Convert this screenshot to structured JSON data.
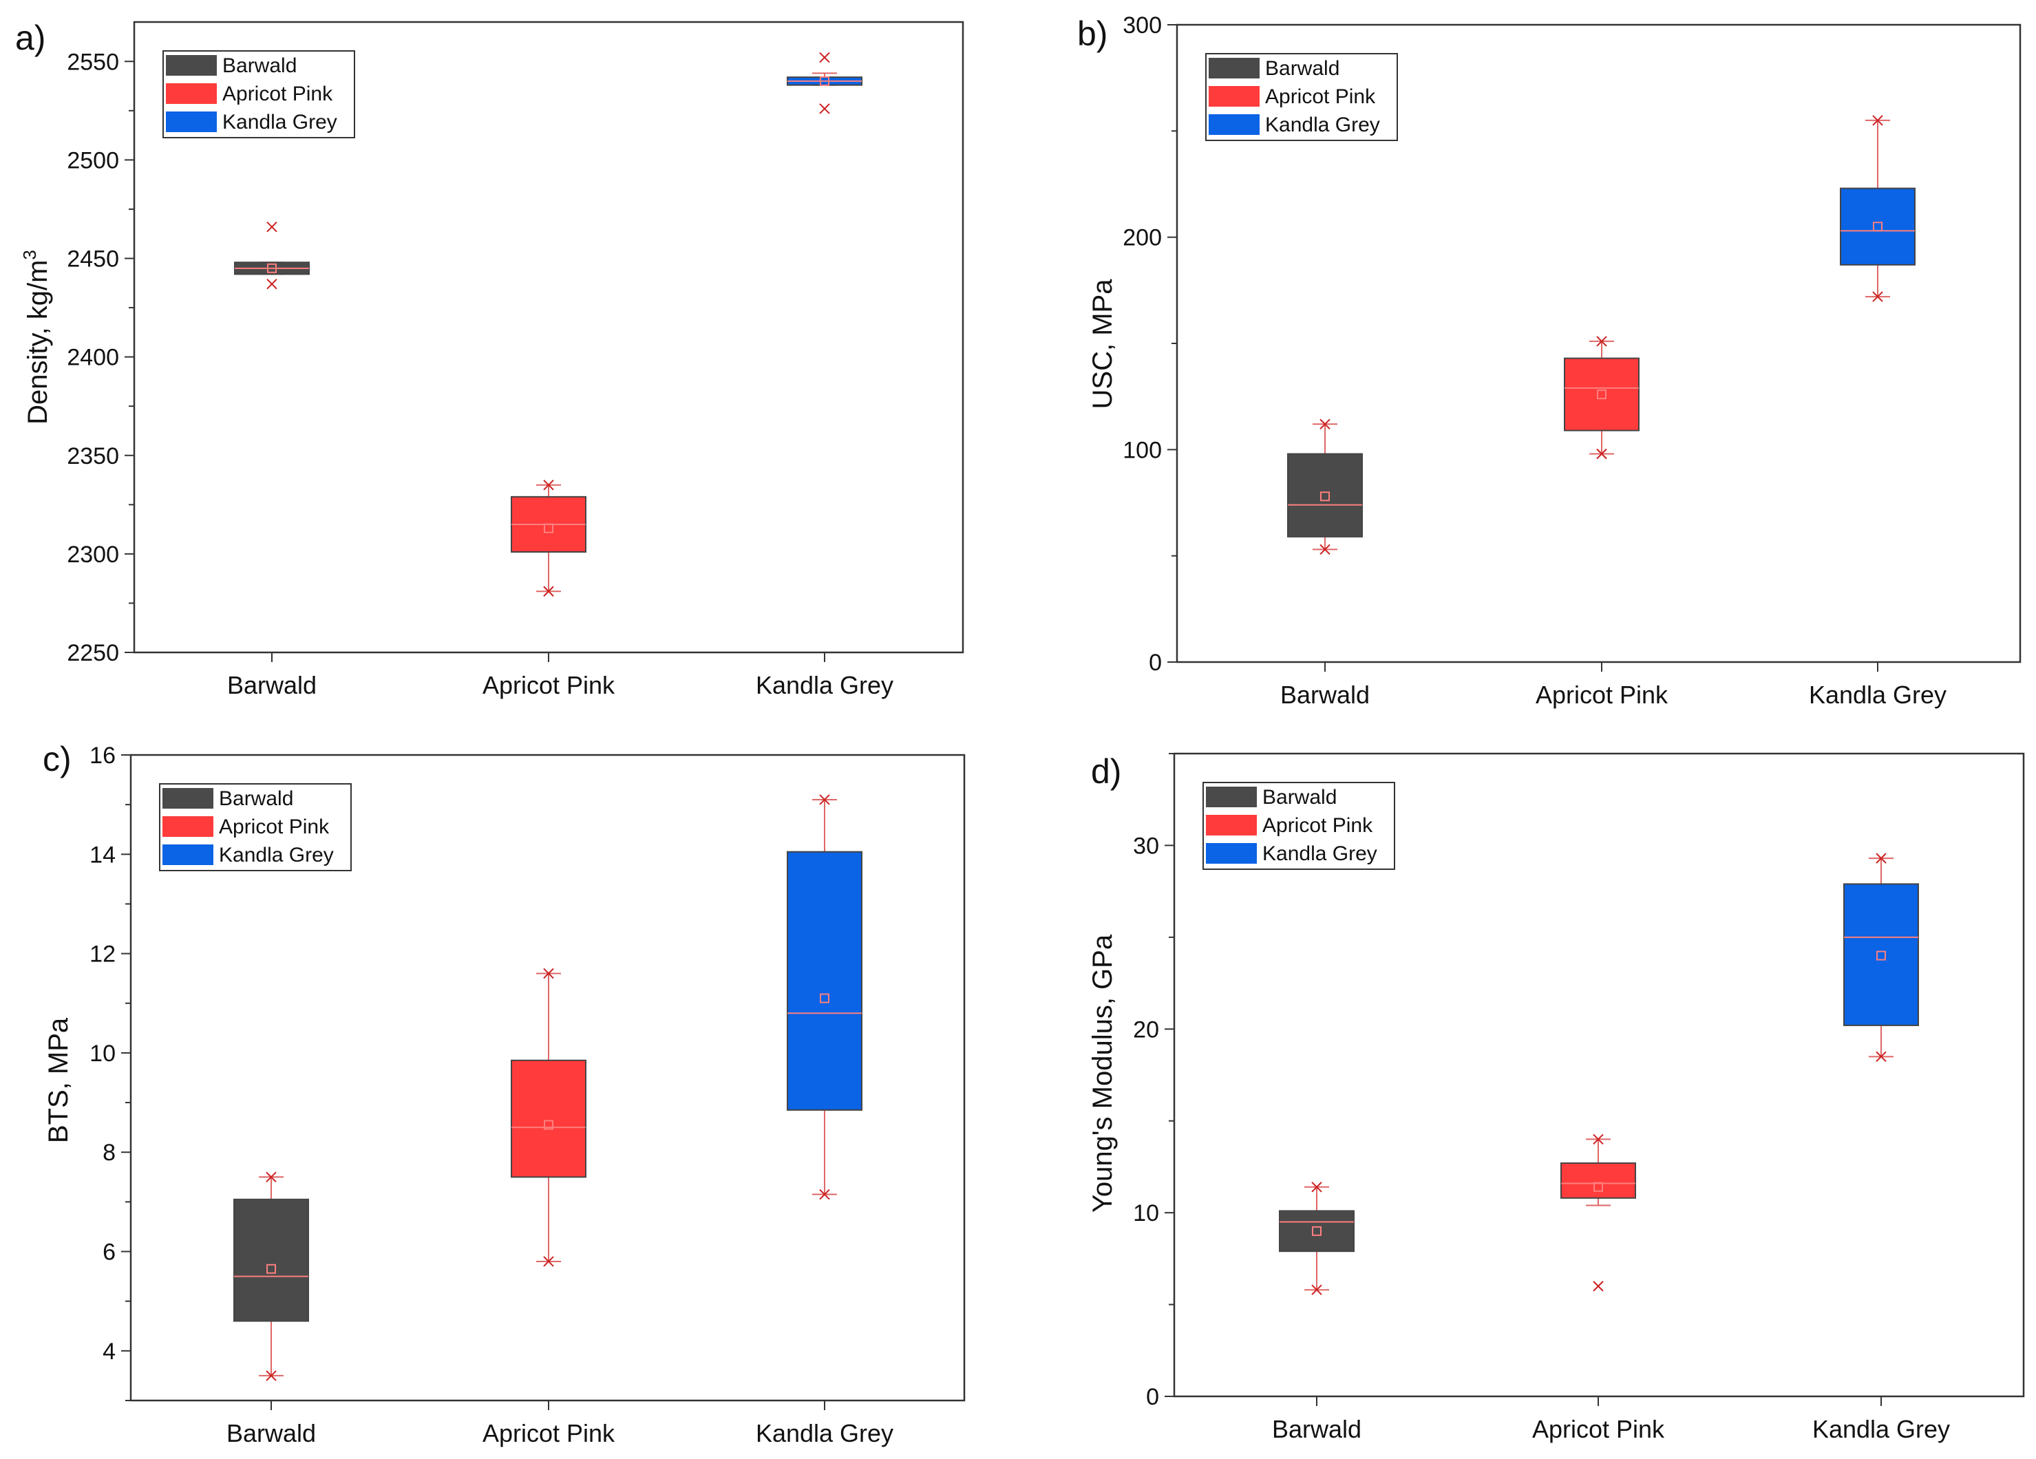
{
  "colors": {
    "Barwald": "#4a4a4a",
    "Apricot Pink": "#ff3b3b",
    "Kandla Grey": "#0b63e5",
    "median": "#ff7f7f",
    "whisker": "#e06666",
    "outlier": "#cc2222"
  },
  "chart_data": [
    {
      "panel_label": "a)",
      "type": "box",
      "categories": [
        "Barwald",
        "Apricot Pink",
        "Kandla Grey"
      ],
      "ylabel": "Density, kg/m",
      "ylabel_sup": "3",
      "ylim": [
        2250,
        2570
      ],
      "yticks": [
        2250,
        2300,
        2350,
        2400,
        2450,
        2500,
        2550
      ],
      "legend": [
        "Barwald",
        "Apricot Pink",
        "Kandla Grey"
      ],
      "boxes": [
        {
          "name": "Barwald",
          "q1": 2442,
          "median": 2445,
          "q3": 2448,
          "mean": 2445,
          "whisker_low": 2442,
          "whisker_high": 2448,
          "outliers": [
            2437,
            2466
          ]
        },
        {
          "name": "Apricot Pink",
          "q1": 2301,
          "median": 2315,
          "q3": 2329,
          "mean": 2313,
          "whisker_low": 2281,
          "whisker_high": 2335,
          "outliers": [
            2281,
            2335
          ]
        },
        {
          "name": "Kandla Grey",
          "q1": 2538,
          "median": 2540,
          "q3": 2542,
          "mean": 2540,
          "whisker_low": 2538,
          "whisker_high": 2544,
          "outliers": [
            2526,
            2552
          ]
        }
      ]
    },
    {
      "panel_label": "b)",
      "type": "box",
      "categories": [
        "Barwald",
        "Apricot Pink",
        "Kandla Grey"
      ],
      "ylabel": "USC, MPa",
      "ylim": [
        0,
        300
      ],
      "yticks": [
        0,
        100,
        200,
        300
      ],
      "legend": [
        "Barwald",
        "Apricot Pink",
        "Kandla Grey"
      ],
      "boxes": [
        {
          "name": "Barwald",
          "q1": 59,
          "median": 74,
          "q3": 98,
          "mean": 78,
          "whisker_low": 53,
          "whisker_high": 112,
          "outliers": [
            53,
            112
          ]
        },
        {
          "name": "Apricot Pink",
          "q1": 109,
          "median": 129,
          "q3": 143,
          "mean": 126,
          "whisker_low": 98,
          "whisker_high": 151,
          "outliers": [
            98,
            151
          ]
        },
        {
          "name": "Kandla Grey",
          "q1": 187,
          "median": 203,
          "q3": 223,
          "mean": 205,
          "whisker_low": 172,
          "whisker_high": 255,
          "outliers": [
            172,
            255
          ]
        }
      ]
    },
    {
      "panel_label": "c)",
      "type": "box",
      "categories": [
        "Barwald",
        "Apricot Pink",
        "Kandla Grey"
      ],
      "ylabel": "BTS, MPa",
      "ylim": [
        3,
        16
      ],
      "yticks": [
        4,
        6,
        8,
        10,
        12,
        14,
        16
      ],
      "legend": [
        "Barwald",
        "Apricot Pink",
        "Kandla Grey"
      ],
      "boxes": [
        {
          "name": "Barwald",
          "q1": 4.6,
          "median": 5.5,
          "q3": 7.05,
          "mean": 5.65,
          "whisker_low": 3.5,
          "whisker_high": 7.5,
          "outliers": [
            3.5,
            7.5
          ]
        },
        {
          "name": "Apricot Pink",
          "q1": 7.5,
          "median": 8.5,
          "q3": 9.85,
          "mean": 8.55,
          "whisker_low": 5.8,
          "whisker_high": 11.6,
          "outliers": [
            5.8,
            11.6
          ]
        },
        {
          "name": "Kandla Grey",
          "q1": 8.85,
          "median": 10.8,
          "q3": 14.05,
          "mean": 11.1,
          "whisker_low": 7.15,
          "whisker_high": 15.1,
          "outliers": [
            7.15,
            15.1
          ]
        }
      ]
    },
    {
      "panel_label": "d)",
      "type": "box",
      "categories": [
        "Barwald",
        "Apricot Pink",
        "Kandla Grey"
      ],
      "ylabel": "Young's Modulus, GPa",
      "ylim": [
        0,
        35
      ],
      "yticks": [
        0,
        10,
        20,
        30
      ],
      "legend": [
        "Barwald",
        "Apricot Pink",
        "Kandla Grey"
      ],
      "boxes": [
        {
          "name": "Barwald",
          "q1": 7.9,
          "median": 9.5,
          "q3": 10.1,
          "mean": 9.0,
          "whisker_low": 5.8,
          "whisker_high": 11.4,
          "outliers": [
            5.8,
            11.4
          ]
        },
        {
          "name": "Apricot Pink",
          "q1": 10.8,
          "median": 11.6,
          "q3": 12.7,
          "mean": 11.4,
          "whisker_low": 10.4,
          "whisker_high": 14.0,
          "outliers": [
            6.0,
            14.0
          ]
        },
        {
          "name": "Kandla Grey",
          "q1": 20.2,
          "median": 25.0,
          "q3": 27.9,
          "mean": 24.0,
          "whisker_low": 18.5,
          "whisker_high": 29.3,
          "outliers": [
            18.5,
            29.3
          ]
        }
      ]
    }
  ]
}
